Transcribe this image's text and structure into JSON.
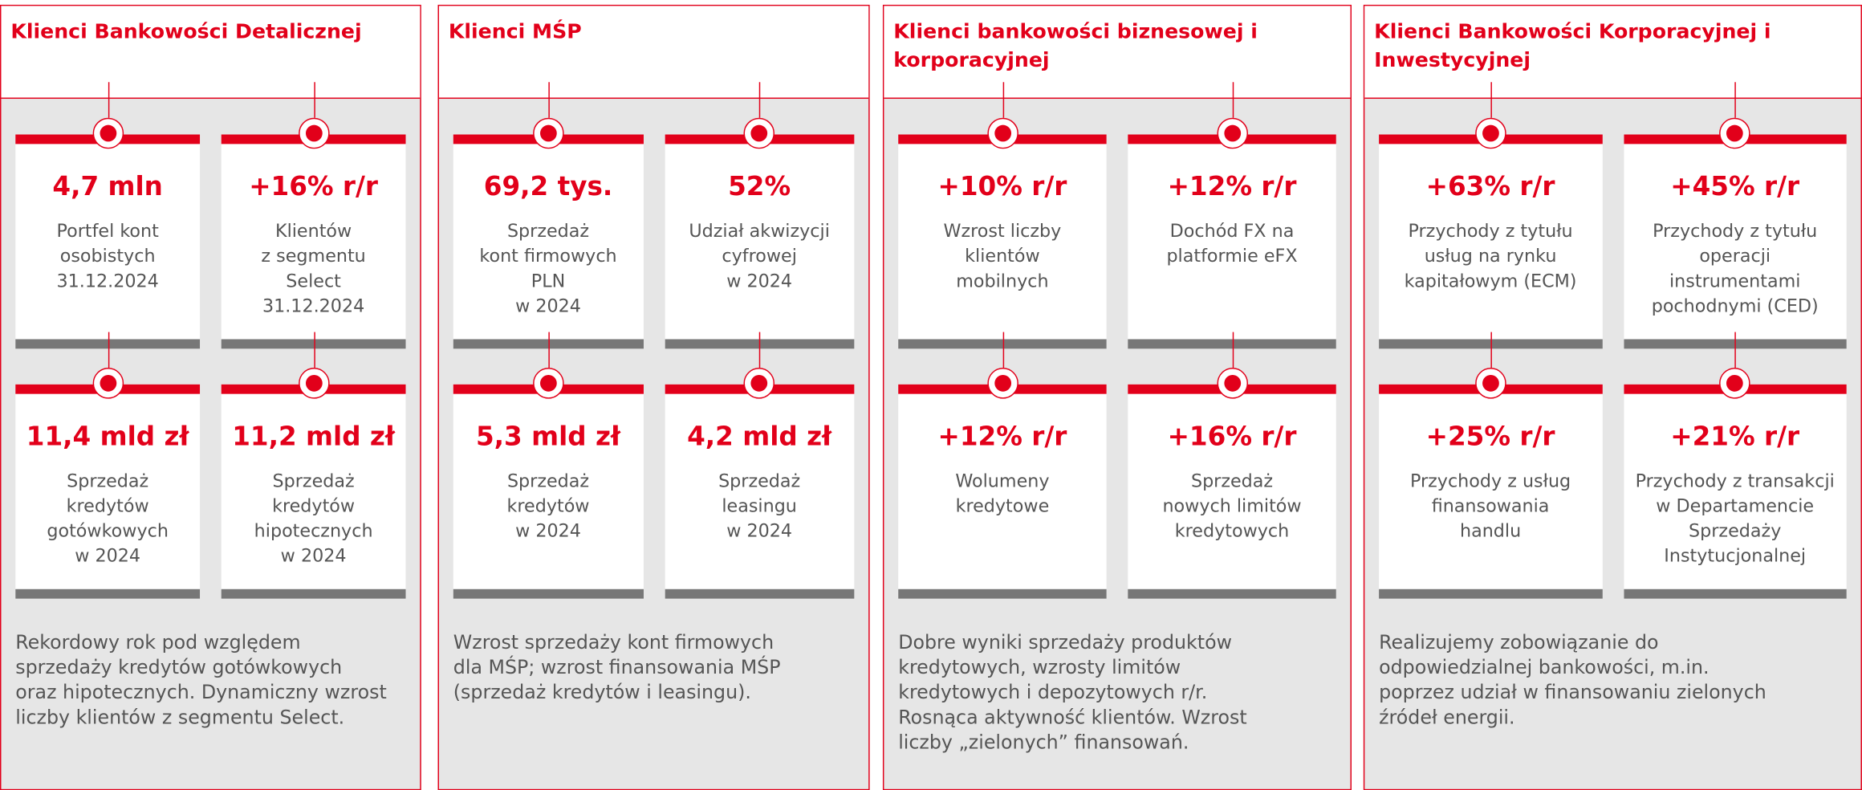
{
  "columns": [
    {
      "title": "Klienci Bankowości Detalicznej",
      "cards": [
        {
          "value": "4,7 mln",
          "lines": [
            "Portfel kont",
            "osobistych",
            "31.12.2024"
          ]
        },
        {
          "value": "+16% r/r",
          "lines": [
            "Klientów",
            "z segmentu",
            "Select",
            "31.12.2024"
          ]
        },
        {
          "value": "11,4 mld zł",
          "lines": [
            "Sprzedaż",
            "kredytów",
            "gotówkowych",
            "w 2024"
          ]
        },
        {
          "value": "11,2 mld zł",
          "lines": [
            "Sprzedaż",
            "kredytów",
            "hipotecznych",
            "w 2024"
          ]
        }
      ],
      "text": [
        "Rekordowy rok pod względem",
        "sprzedaży kredytów gotówkowych",
        "oraz hipotecznych. Dynamiczny wzrost",
        "liczby klientów z segmentu Select."
      ]
    },
    {
      "title": "Klienci MŚP",
      "cards": [
        {
          "value": "69,2 tys.",
          "lines": [
            "Sprzedaż",
            "kont firmowych",
            "PLN",
            "w 2024"
          ]
        },
        {
          "value": "52%",
          "lines": [
            "Udział akwizycji",
            "cyfrowej",
            "w 2024"
          ]
        },
        {
          "value": "5,3 mld zł",
          "lines": [
            "Sprzedaż",
            "kredytów",
            "w 2024"
          ]
        },
        {
          "value": "4,2 mld zł",
          "lines": [
            "Sprzedaż",
            "leasingu",
            "w 2024"
          ]
        }
      ],
      "text": [
        "Wzrost sprzedaży kont firmowych",
        "dla MŚP; wzrost finansowania MŚP",
        "(sprzedaż kredytów i leasingu)."
      ]
    },
    {
      "title": "Klienci bankowości biznesowej i korporacyjnej",
      "cards": [
        {
          "value": "+10% r/r",
          "lines": [
            "Wzrost liczby",
            "klientów",
            "mobilnych"
          ]
        },
        {
          "value": "+12% r/r",
          "lines": [
            "Dochód FX na",
            "platformie eFX"
          ]
        },
        {
          "value": "+12% r/r",
          "lines": [
            "Wolumeny",
            "kredytowe"
          ]
        },
        {
          "value": "+16% r/r",
          "lines": [
            "Sprzedaż",
            "nowych limitów",
            "kredytowych"
          ]
        }
      ],
      "text": [
        "Dobre wyniki sprzedaży produktów",
        "kredytowych, wzrosty limitów",
        "kredytowych i depozytowych r/r.",
        "Rosnąca aktywność klientów. Wzrost",
        "liczby „zielonych” finansowań."
      ]
    },
    {
      "title": "Klienci Bankowości Korporacyjnej i Inwestycyjnej",
      "cards": [
        {
          "value": "+63% r/r",
          "lines": [
            "Przychody z tytułu",
            "usług na rynku",
            "kapitałowym (ECM)"
          ]
        },
        {
          "value": "+45% r/r",
          "lines": [
            "Przychody z tytułu",
            "operacji",
            "instrumentami",
            "pochodnymi (CED)"
          ]
        },
        {
          "value": "+25% r/r",
          "lines": [
            "Przychody z usług",
            "finansowania",
            "handlu"
          ]
        },
        {
          "value": "+21% r/r",
          "lines": [
            "Przychody z transakcji",
            "w Departamencie",
            "Sprzedaży",
            "Instytucjonalnej"
          ]
        }
      ],
      "text": [
        "Realizujemy zobowiązanie do",
        "odpowiedzialnej bankowości, m.in.",
        "poprzez udział w finansowaniu zielonych",
        "źródeł energii."
      ]
    }
  ]
}
